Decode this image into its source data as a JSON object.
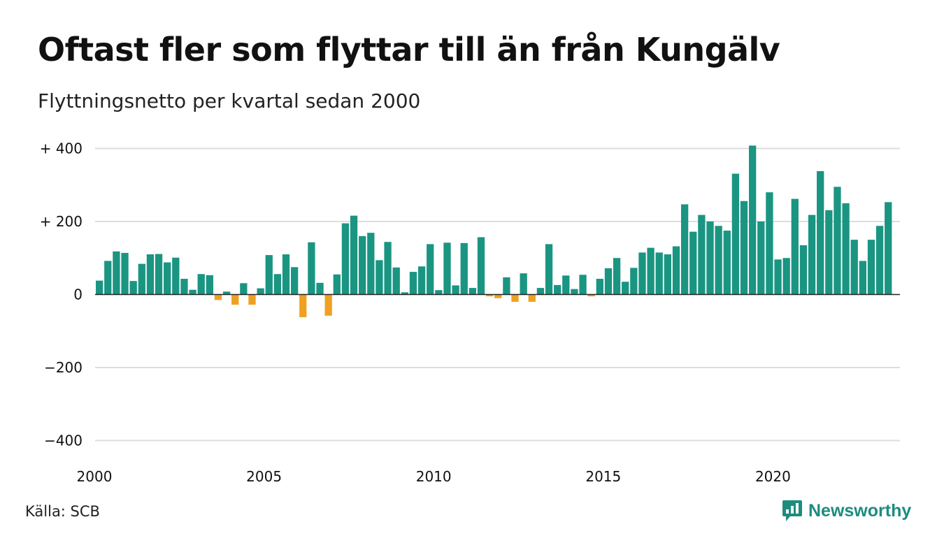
{
  "header": {
    "title": "Oftast fler som flyttar till än från Kungälv",
    "subtitle": "Flyttningsnetto per kvartal sedan 2000"
  },
  "footer": {
    "source": "Källa: SCB",
    "brand": "Newsworthy",
    "brand_icon": "newsworthy-logo-icon"
  },
  "colors": {
    "positive": "#1a9582",
    "negative": "#f0a020",
    "grid": "#dddddd",
    "brand": "#1d8c7e"
  },
  "chart_data": {
    "type": "bar",
    "x_tick_labels": [
      "2000",
      "2005",
      "2010",
      "2015",
      "2020"
    ],
    "y_tick_labels": [
      "+ 400",
      "+ 200",
      "0",
      "−200",
      "−400"
    ],
    "y_ticks": [
      400,
      200,
      0,
      -200,
      -400
    ],
    "ylim": [
      -400,
      400
    ],
    "grid": true,
    "start_period": "2000 Q1",
    "frequency": "quarter",
    "values": [
      38,
      92,
      118,
      114,
      37,
      84,
      110,
      111,
      88,
      101,
      43,
      13,
      56,
      53,
      -15,
      8,
      -28,
      31,
      -28,
      17,
      108,
      56,
      110,
      75,
      -62,
      143,
      32,
      -58,
      55,
      195,
      216,
      160,
      169,
      94,
      144,
      74,
      6,
      62,
      77,
      138,
      12,
      142,
      25,
      141,
      18,
      157,
      -5,
      -10,
      47,
      -20,
      58,
      -20,
      18,
      138,
      26,
      52,
      15,
      54,
      -5,
      43,
      72,
      100,
      35,
      73,
      115,
      128,
      115,
      110,
      132,
      247,
      172,
      218,
      200,
      188,
      175,
      331,
      256,
      408,
      200,
      280,
      96,
      100,
      262,
      135,
      218,
      338,
      231,
      295,
      250,
      150,
      92,
      150,
      188,
      253
    ]
  }
}
